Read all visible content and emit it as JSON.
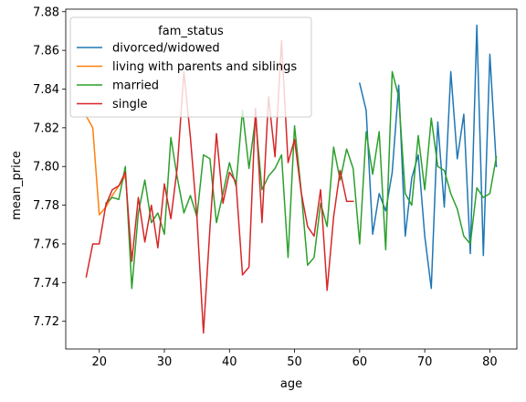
{
  "chart_data": {
    "type": "line",
    "xlabel": "age",
    "ylabel": "mean_price",
    "xlim": [
      14.85,
      84.15
    ],
    "ylim": [
      7.7057,
      7.8813
    ],
    "xticks": [
      20,
      30,
      40,
      50,
      60,
      70,
      80
    ],
    "yticks": [
      7.72,
      7.74,
      7.76,
      7.78,
      7.8,
      7.82,
      7.84,
      7.86,
      7.88
    ],
    "grid": false,
    "legend": {
      "title": "fam_status",
      "placement": "top-left"
    },
    "series": [
      {
        "name": "divorced/widowed",
        "color": "#1f77b4",
        "points": [
          [
            60,
            7.843
          ],
          [
            61,
            7.829
          ],
          [
            62,
            7.765
          ],
          [
            63,
            7.786
          ],
          [
            64,
            7.777
          ],
          [
            65,
            7.797
          ],
          [
            66,
            7.842
          ],
          [
            67,
            7.764
          ],
          [
            68,
            7.794
          ],
          [
            69,
            7.806
          ],
          [
            70,
            7.764
          ],
          [
            71,
            7.737
          ],
          [
            72,
            7.823
          ],
          [
            73,
            7.779
          ],
          [
            74,
            7.849
          ],
          [
            75,
            7.804
          ],
          [
            76,
            7.827
          ],
          [
            77,
            7.755
          ],
          [
            78,
            7.873
          ],
          [
            79,
            7.754
          ],
          [
            80,
            7.858
          ],
          [
            81,
            7.8
          ]
        ]
      },
      {
        "name": "living with parents and siblings",
        "color": "#ff7f0e",
        "points": [
          [
            18,
            7.826
          ],
          [
            19,
            7.82
          ],
          [
            20,
            7.775
          ],
          [
            21,
            7.779
          ],
          [
            22,
            7.785
          ],
          [
            23,
            7.79
          ],
          [
            24,
            7.795
          ]
        ]
      },
      {
        "name": "married",
        "color": "#2ca02c",
        "points": [
          [
            21,
            7.781
          ],
          [
            22,
            7.784
          ],
          [
            23,
            7.783
          ],
          [
            24,
            7.8
          ],
          [
            25,
            7.737
          ],
          [
            26,
            7.776
          ],
          [
            27,
            7.793
          ],
          [
            28,
            7.771
          ],
          [
            29,
            7.776
          ],
          [
            30,
            7.765
          ],
          [
            31,
            7.815
          ],
          [
            32,
            7.794
          ],
          [
            33,
            7.776
          ],
          [
            34,
            7.785
          ],
          [
            35,
            7.774
          ],
          [
            36,
            7.806
          ],
          [
            37,
            7.804
          ],
          [
            38,
            7.771
          ],
          [
            39,
            7.786
          ],
          [
            40,
            7.802
          ],
          [
            41,
            7.79
          ],
          [
            42,
            7.829
          ],
          [
            43,
            7.799
          ],
          [
            44,
            7.825
          ],
          [
            45,
            7.788
          ],
          [
            46,
            7.795
          ],
          [
            47,
            7.799
          ],
          [
            48,
            7.806
          ],
          [
            49,
            7.753
          ],
          [
            50,
            7.821
          ],
          [
            51,
            7.788
          ],
          [
            52,
            7.749
          ],
          [
            53,
            7.753
          ],
          [
            54,
            7.781
          ],
          [
            55,
            7.769
          ],
          [
            56,
            7.81
          ],
          [
            57,
            7.793
          ],
          [
            58,
            7.809
          ],
          [
            59,
            7.799
          ],
          [
            60,
            7.76
          ],
          [
            61,
            7.818
          ],
          [
            62,
            7.796
          ],
          [
            63,
            7.818
          ],
          [
            64,
            7.757
          ],
          [
            65,
            7.849
          ],
          [
            66,
            7.836
          ],
          [
            67,
            7.786
          ],
          [
            68,
            7.78
          ],
          [
            69,
            7.816
          ],
          [
            70,
            7.788
          ],
          [
            71,
            7.825
          ],
          [
            72,
            7.8
          ],
          [
            73,
            7.798
          ],
          [
            74,
            7.786
          ],
          [
            75,
            7.778
          ],
          [
            76,
            7.764
          ],
          [
            77,
            7.76
          ],
          [
            78,
            7.789
          ],
          [
            79,
            7.784
          ],
          [
            80,
            7.786
          ],
          [
            81,
            7.805
          ]
        ]
      },
      {
        "name": "single",
        "color": "#d62728",
        "points": [
          [
            18,
            7.743
          ],
          [
            19,
            7.76
          ],
          [
            20,
            7.76
          ],
          [
            21,
            7.78
          ],
          [
            22,
            7.788
          ],
          [
            23,
            7.79
          ],
          [
            24,
            7.797
          ],
          [
            25,
            7.751
          ],
          [
            26,
            7.784
          ],
          [
            27,
            7.761
          ],
          [
            28,
            7.78
          ],
          [
            29,
            7.758
          ],
          [
            30,
            7.791
          ],
          [
            31,
            7.773
          ],
          [
            32,
            7.8
          ],
          [
            33,
            7.849
          ],
          [
            34,
            7.815
          ],
          [
            35,
            7.774
          ],
          [
            36,
            7.714
          ],
          [
            37,
            7.768
          ],
          [
            38,
            7.817
          ],
          [
            39,
            7.781
          ],
          [
            40,
            7.797
          ],
          [
            41,
            7.792
          ],
          [
            42,
            7.744
          ],
          [
            43,
            7.748
          ],
          [
            44,
            7.83
          ],
          [
            45,
            7.771
          ],
          [
            46,
            7.836
          ],
          [
            47,
            7.805
          ],
          [
            48,
            7.865
          ],
          [
            49,
            7.802
          ],
          [
            50,
            7.814
          ],
          [
            51,
            7.787
          ],
          [
            52,
            7.769
          ],
          [
            53,
            7.764
          ],
          [
            54,
            7.788
          ],
          [
            55,
            7.736
          ],
          [
            56,
            7.774
          ],
          [
            57,
            7.798
          ],
          [
            58,
            7.782
          ],
          [
            59,
            7.782
          ]
        ]
      }
    ]
  }
}
